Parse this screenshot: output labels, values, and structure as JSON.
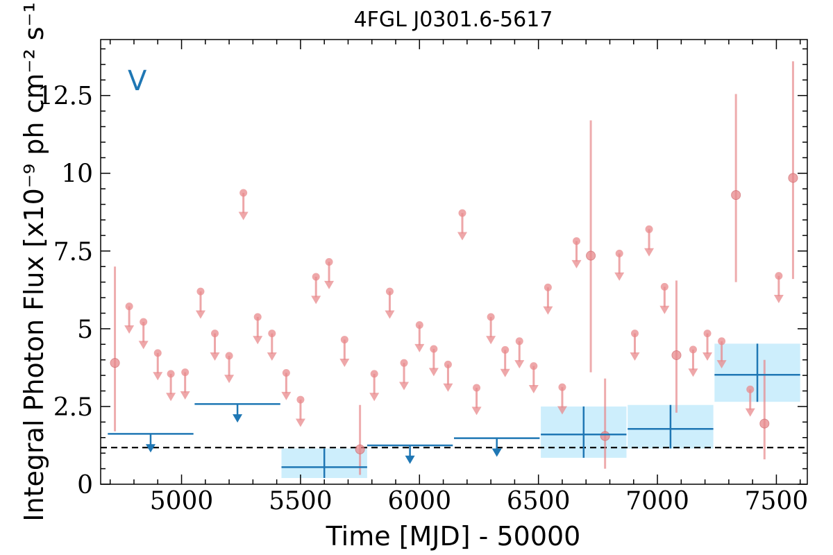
{
  "chart_data": {
    "type": "scatter",
    "title": "4FGL J0301.6-5617",
    "xlabel": "Time [MJD] - 50000",
    "ylabel": "Integral Photon Flux [x10⁻⁹ ph cm⁻² s⁻¹]",
    "annotation": "V",
    "xlim": [
      4660,
      7630
    ],
    "ylim": [
      0,
      14.3
    ],
    "x_ticks": [
      5000,
      5500,
      6000,
      6500,
      7000,
      7500
    ],
    "x_tick_labels": [
      "5000",
      "5500",
      "6000",
      "6500",
      "7000",
      "7500"
    ],
    "y_ticks": [
      0,
      2.5,
      5,
      7.5,
      10,
      12.5
    ],
    "y_tick_labels": [
      "0",
      "2.5",
      "5",
      "7.5",
      "10",
      "12.5"
    ],
    "reference_line": {
      "y": 1.18,
      "style": "dashed",
      "color": "#000000"
    },
    "colors": {
      "coarse": "#1f77b4",
      "coarse_band": "#cdeefc",
      "fine": "#e8898c"
    },
    "series": [
      {
        "bin": "fine",
        "detections": [
          {
            "x": 4720,
            "y": 3.9,
            "ylo": 1.7,
            "yhi": 7.0
          },
          {
            "x": 5750,
            "y": 1.12,
            "ylo": 0.3,
            "yhi": 2.55
          },
          {
            "x": 6720,
            "y": 7.35,
            "ylo": 3.6,
            "yhi": 11.7
          },
          {
            "x": 6780,
            "y": 1.55,
            "ylo": 0.5,
            "yhi": 3.4
          },
          {
            "x": 7080,
            "y": 4.15,
            "ylo": 2.3,
            "yhi": 6.55
          },
          {
            "x": 7330,
            "y": 9.3,
            "ylo": 6.5,
            "yhi": 12.55
          },
          {
            "x": 7450,
            "y": 1.95,
            "ylo": 0.8,
            "yhi": 4.0
          },
          {
            "x": 7570,
            "y": 9.85,
            "ylo": 6.6,
            "yhi": 13.6
          }
        ],
        "upper_limits": [
          {
            "x": 4780,
            "y": 5.72
          },
          {
            "x": 4840,
            "y": 5.22
          },
          {
            "x": 4900,
            "y": 4.22
          },
          {
            "x": 4955,
            "y": 3.55
          },
          {
            "x": 5015,
            "y": 3.6
          },
          {
            "x": 5080,
            "y": 6.2
          },
          {
            "x": 5140,
            "y": 4.85
          },
          {
            "x": 5200,
            "y": 4.13
          },
          {
            "x": 5260,
            "y": 9.37
          },
          {
            "x": 5320,
            "y": 5.38
          },
          {
            "x": 5380,
            "y": 4.85
          },
          {
            "x": 5440,
            "y": 3.58
          },
          {
            "x": 5500,
            "y": 2.72
          },
          {
            "x": 5565,
            "y": 6.67
          },
          {
            "x": 5620,
            "y": 7.15
          },
          {
            "x": 5685,
            "y": 4.65
          },
          {
            "x": 5810,
            "y": 3.55
          },
          {
            "x": 5875,
            "y": 6.2
          },
          {
            "x": 5935,
            "y": 3.9
          },
          {
            "x": 6000,
            "y": 5.12
          },
          {
            "x": 6060,
            "y": 4.35
          },
          {
            "x": 6120,
            "y": 3.85
          },
          {
            "x": 6180,
            "y": 8.72
          },
          {
            "x": 6240,
            "y": 3.1
          },
          {
            "x": 6300,
            "y": 5.38
          },
          {
            "x": 6360,
            "y": 4.32
          },
          {
            "x": 6420,
            "y": 4.6
          },
          {
            "x": 6480,
            "y": 3.8
          },
          {
            "x": 6540,
            "y": 6.33
          },
          {
            "x": 6600,
            "y": 3.12
          },
          {
            "x": 6660,
            "y": 7.82
          },
          {
            "x": 6840,
            "y": 7.42
          },
          {
            "x": 6905,
            "y": 4.85
          },
          {
            "x": 6965,
            "y": 8.2
          },
          {
            "x": 7030,
            "y": 6.35
          },
          {
            "x": 7150,
            "y": 4.33
          },
          {
            "x": 7210,
            "y": 4.85
          },
          {
            "x": 7270,
            "y": 4.6
          },
          {
            "x": 7390,
            "y": 3.05
          },
          {
            "x": 7510,
            "y": 6.7
          }
        ]
      },
      {
        "bin": "coarse",
        "detections": [
          {
            "x": 5600,
            "xlo": 5420,
            "xhi": 5780,
            "y": 0.55,
            "ylo": 0.2,
            "yhi": 1.15
          },
          {
            "x": 6690,
            "xlo": 6510,
            "xhi": 6870,
            "y": 1.6,
            "ylo": 0.85,
            "yhi": 2.5
          },
          {
            "x": 7055,
            "xlo": 6875,
            "xhi": 7235,
            "y": 1.78,
            "ylo": 1.15,
            "yhi": 2.55
          },
          {
            "x": 7420,
            "xlo": 7240,
            "xhi": 7600,
            "y": 3.52,
            "ylo": 2.65,
            "yhi": 4.52
          }
        ],
        "upper_limits": [
          {
            "x": 4870,
            "xlo": 4690,
            "xhi": 5050,
            "y": 1.62
          },
          {
            "x": 5235,
            "xlo": 5055,
            "xhi": 5415,
            "y": 2.58
          },
          {
            "x": 5960,
            "xlo": 5780,
            "xhi": 6140,
            "y": 1.25
          },
          {
            "x": 6325,
            "xlo": 6145,
            "xhi": 6505,
            "y": 1.48
          }
        ]
      }
    ]
  }
}
